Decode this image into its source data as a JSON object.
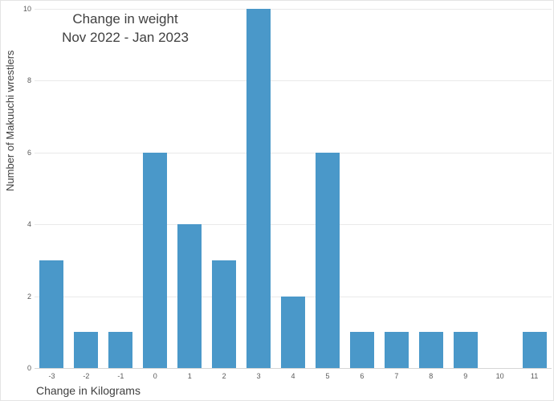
{
  "chart": {
    "title_line1": "Change in weight",
    "title_line2": "Nov 2022 - Jan 2023",
    "ylabel": "Number of Makuuchi wrestlers",
    "xlabel": "Change in Kilograms"
  },
  "chart_data": {
    "type": "bar",
    "title": "Change in weight Nov 2022 - Jan 2023",
    "categories": [
      "-3",
      "-2",
      "-1",
      "0",
      "1",
      "2",
      "3",
      "4",
      "5",
      "6",
      "7",
      "8",
      "9",
      "10",
      "11"
    ],
    "values": [
      3,
      1,
      1,
      6,
      4,
      3,
      10,
      2,
      6,
      1,
      1,
      1,
      1,
      0,
      1
    ],
    "xlabel": "Change in Kilograms",
    "ylabel": "Number of Makuuchi wrestlers",
    "ylim": [
      0,
      10
    ],
    "ytick_step": 2,
    "grid": true,
    "legend": "none",
    "bar_color": "#4A98C9",
    "grid_color": "#E9E9E9",
    "axis_line_color": "#D6D6D6",
    "text_color": "#404040",
    "tick_color": "#595959"
  }
}
